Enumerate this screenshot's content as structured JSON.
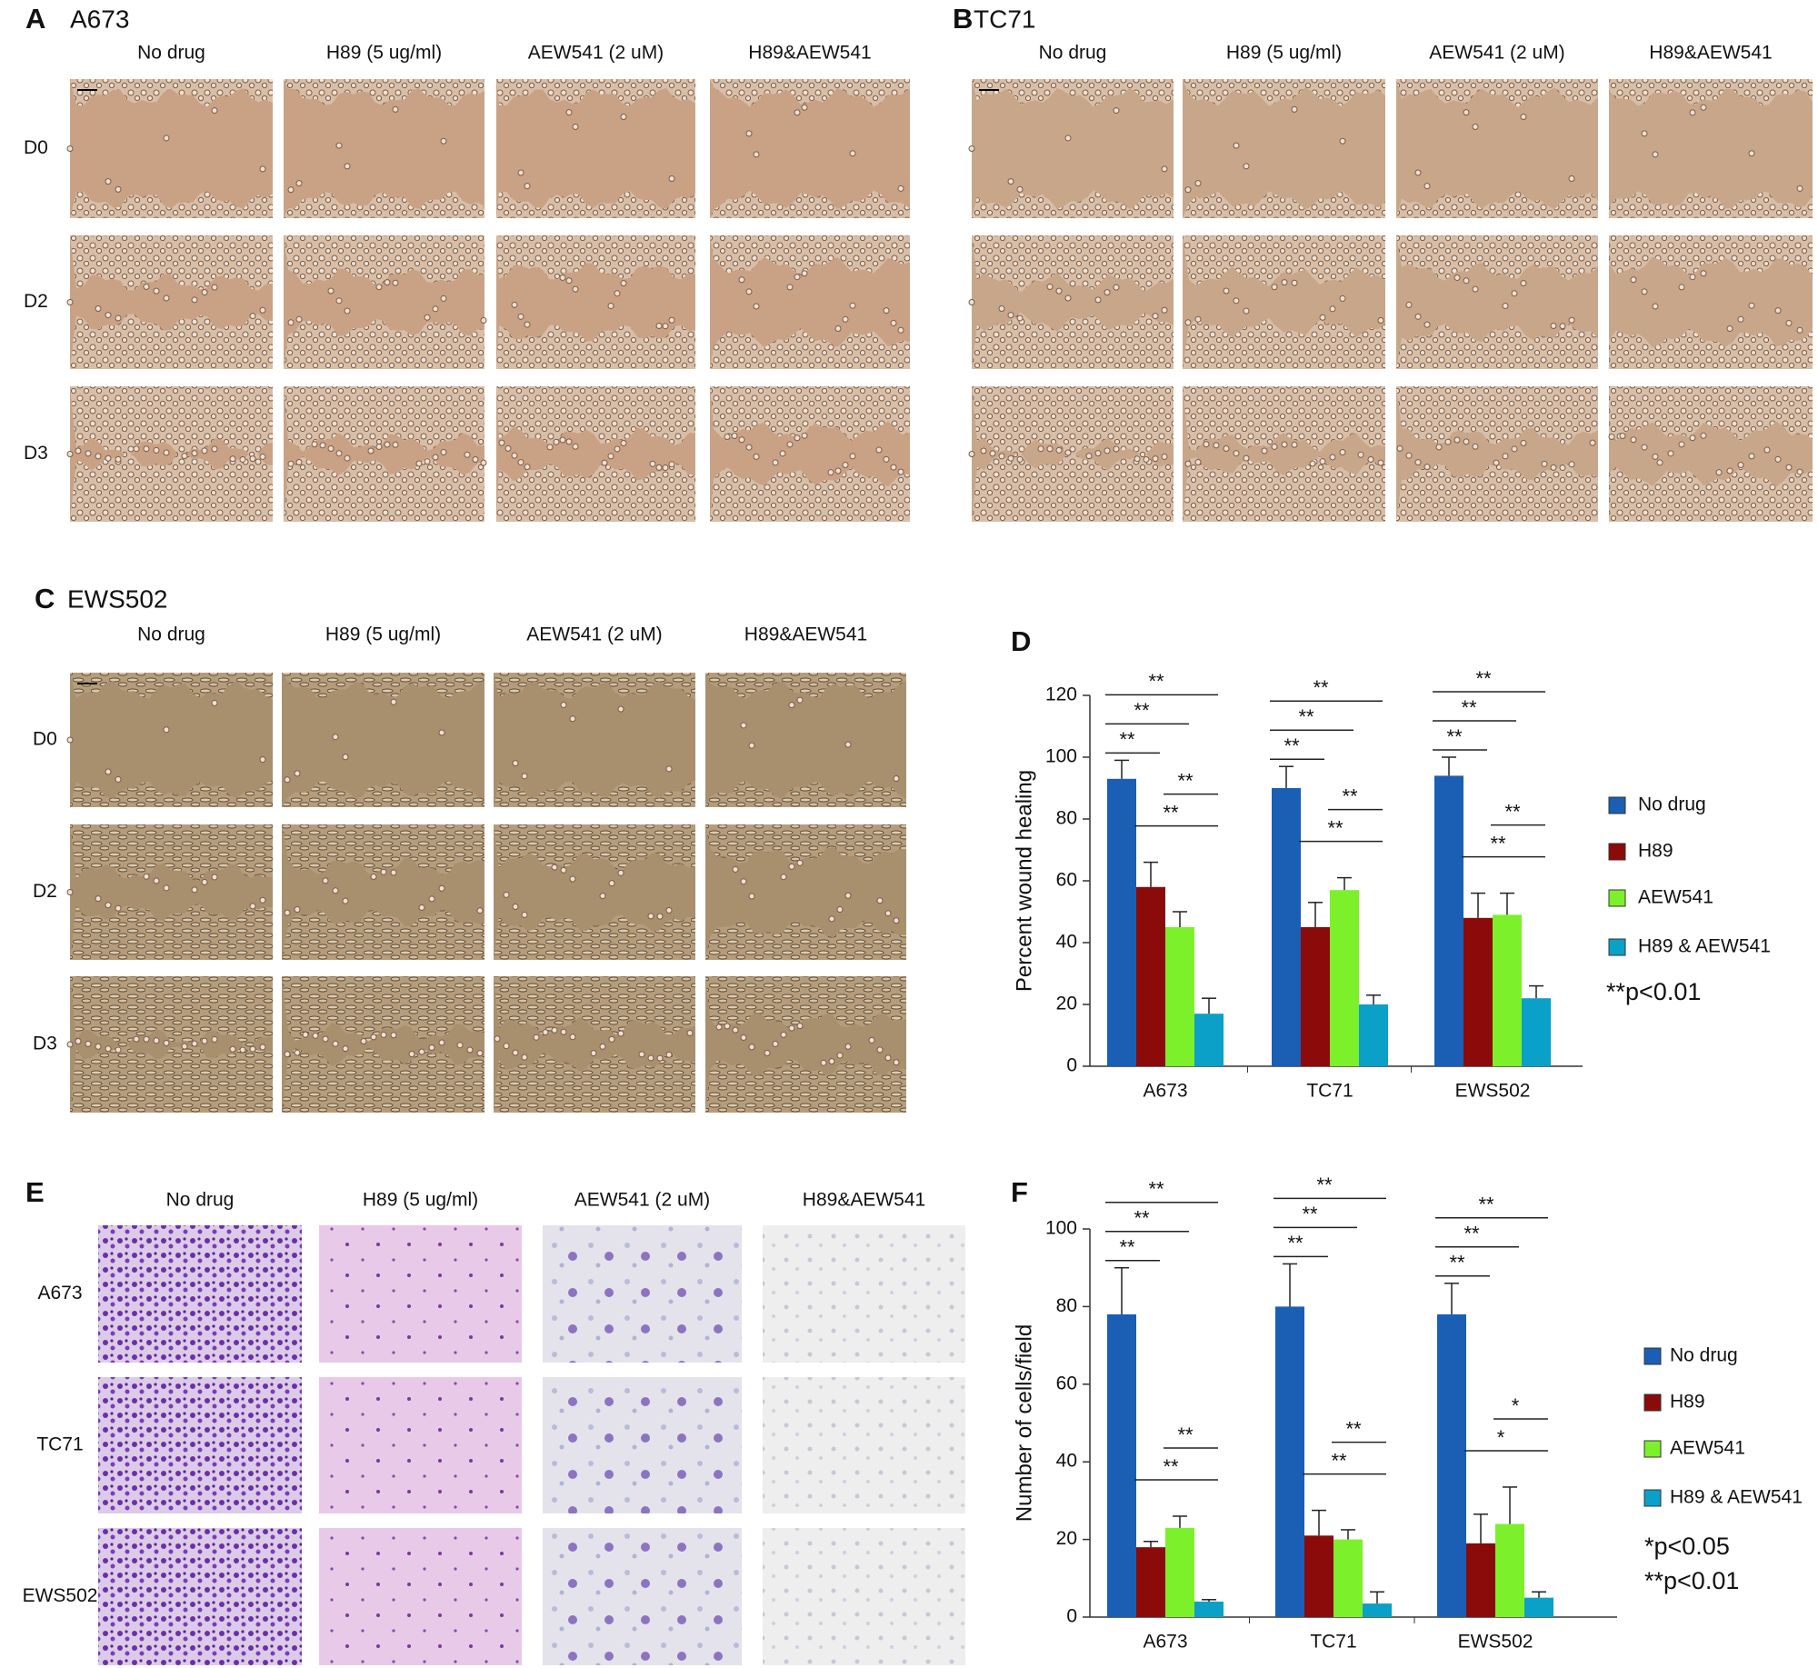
{
  "panels": [
    {
      "letter": "A",
      "title": "A673",
      "columns": [
        "No drug",
        "H89 (5 ug/ml)",
        "AEW541 (2 uM)",
        "H89&AEW541"
      ],
      "rows": [
        "D0",
        "D2",
        "D3"
      ]
    },
    {
      "letter": "B",
      "title": "TC71",
      "columns": [
        "No drug",
        "H89 (5 ug/ml)",
        "AEW541 (2 uM)",
        "H89&AEW541"
      ]
    },
    {
      "letter": "C",
      "title": "EWS502",
      "columns": [
        "No drug",
        "H89 (5 ug/ml)",
        "AEW541 (2 uM)",
        "H89&AEW541"
      ],
      "rows": [
        "D0",
        "D2",
        "D3"
      ]
    },
    {
      "letter": "E",
      "columns": [
        "No drug",
        "H89 (5 ug/ml)",
        "AEW541 (2 uM)",
        "H89&AEW541"
      ],
      "rows": [
        "A673",
        "TC71",
        "EWS502"
      ]
    }
  ],
  "chart_data": [
    {
      "type": "bar",
      "panel_label": "D",
      "ylabel": "Percent wound healing",
      "categories": [
        "A673",
        "TC71",
        "EWS502"
      ],
      "series": [
        {
          "name": "No drug",
          "color": "#1a5fb4",
          "values": [
            93,
            90,
            94
          ],
          "errors": [
            6,
            7,
            6
          ]
        },
        {
          "name": "H89",
          "color": "#8b0a0a",
          "values": [
            58,
            45,
            48
          ],
          "errors": [
            8,
            8,
            8
          ]
        },
        {
          "name": "AEW541",
          "color": "#7cf02a",
          "values": [
            45,
            57,
            49
          ],
          "errors": [
            5,
            4,
            7
          ]
        },
        {
          "name": "H89 & AEW541",
          "color": "#0aa0c8",
          "values": [
            17,
            20,
            22
          ],
          "errors": [
            5,
            3,
            4
          ]
        }
      ],
      "ylim": [
        0,
        120
      ],
      "yticks": [
        0,
        20,
        40,
        60,
        80,
        100,
        120
      ],
      "significance": [
        [
          "**",
          "**",
          "**",
          "**",
          "**"
        ],
        [
          "**",
          "**",
          "**",
          "**",
          "**"
        ],
        [
          "**",
          "**",
          "**",
          "**",
          "**"
        ]
      ],
      "notes": [
        "**p<0.01"
      ]
    },
    {
      "type": "bar",
      "panel_label": "F",
      "ylabel": "Number of cells/field",
      "categories": [
        "A673",
        "TC71",
        "EWS502"
      ],
      "series": [
        {
          "name": "No drug",
          "color": "#1a5fb4",
          "values": [
            78,
            80,
            78
          ],
          "errors": [
            12,
            11,
            8
          ]
        },
        {
          "name": "H89",
          "color": "#8b0a0a",
          "values": [
            18,
            21,
            19
          ],
          "errors": [
            1.5,
            6.5,
            7.5
          ]
        },
        {
          "name": "AEW541",
          "color": "#7cf02a",
          "values": [
            23,
            20,
            24
          ],
          "errors": [
            3,
            2.5,
            9.5
          ]
        },
        {
          "name": "H89 & AEW541",
          "color": "#0aa0c8",
          "values": [
            4,
            3.5,
            5
          ],
          "errors": [
            0.5,
            3,
            1.5
          ]
        }
      ],
      "ylim": [
        0,
        100
      ],
      "yticks": [
        0,
        20,
        40,
        60,
        80,
        100
      ],
      "significance": [
        [
          "**",
          "**",
          "**",
          "**",
          "**"
        ],
        [
          "**",
          "**",
          "**",
          "**",
          "**"
        ],
        [
          "**",
          "**",
          "**",
          "*",
          "*"
        ]
      ],
      "notes": [
        "*p<0.05",
        "**p<0.01"
      ]
    }
  ]
}
